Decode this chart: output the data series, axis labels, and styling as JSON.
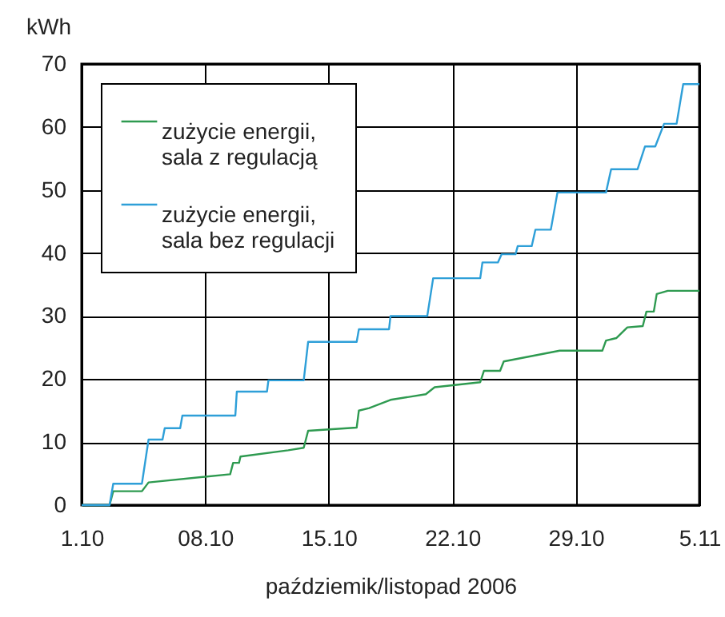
{
  "chart_data": {
    "type": "line",
    "xlabel": "paździemik/listopad 2006",
    "ylabel": "kWh",
    "xlim": [
      "2006-10-01",
      "2006-11-05"
    ],
    "xticks": [
      {
        "value": "2006-10-01",
        "label": "1.10"
      },
      {
        "value": "2006-10-08",
        "label": "08.10"
      },
      {
        "value": "2006-10-15",
        "label": "15.10"
      },
      {
        "value": "2006-10-22",
        "label": "22.10"
      },
      {
        "value": "2006-10-29",
        "label": "29.10"
      },
      {
        "value": "2006-11-05",
        "label": "5.11"
      }
    ],
    "ylim": [
      0,
      70
    ],
    "yticks": [
      0,
      10,
      20,
      30,
      40,
      50,
      60,
      70
    ],
    "grid": true,
    "legend": "top left",
    "line_style": "solid",
    "marker": "none",
    "series": [
      {
        "name": "zużycie energii, sala z regulacją",
        "color": "#2e9a50",
        "x": [
          "2006-10-01T00:00",
          "2006-10-02T14:00",
          "2006-10-02T19:00",
          "2006-10-04T10:00",
          "2006-10-04T19:00",
          "2006-10-09T10:00",
          "2006-10-09T14:00",
          "2006-10-09T22:00",
          "2006-10-10T00:00",
          "2006-10-12T17:00",
          "2006-10-13T14:00",
          "2006-10-13T20:00",
          "2006-10-16T14:00",
          "2006-10-16T17:00",
          "2006-10-17T07:00",
          "2006-10-18T12:00",
          "2006-10-20T12:00",
          "2006-10-21T00:00",
          "2006-10-23T14:00",
          "2006-10-23T19:00",
          "2006-10-24T17:00",
          "2006-10-24T22:00",
          "2006-10-28T02:00",
          "2006-10-30T12:00",
          "2006-10-30T17:00",
          "2006-10-31T07:00",
          "2006-10-31T22:00",
          "2006-11-01T19:00",
          "2006-11-02T00:00",
          "2006-11-02T10:00",
          "2006-11-02T14:00",
          "2006-11-03T05:00",
          "2006-11-05T00:00"
        ],
        "values": [
          0,
          0,
          2.2,
          2.2,
          3.6,
          4.9,
          6.7,
          6.7,
          7.7,
          8.7,
          9.1,
          11.8,
          12.3,
          15.0,
          15.4,
          16.7,
          17.6,
          18.7,
          19.5,
          21.3,
          21.3,
          22.8,
          24.5,
          24.5,
          26.1,
          26.5,
          28.2,
          28.4,
          30.7,
          30.7,
          33.5,
          34.0,
          34.0
        ]
      },
      {
        "name": "zużycie energii, sala bez regulacji",
        "color": "#2e9fd8",
        "x": [
          "2006-10-01T00:00",
          "2006-10-02T14:00",
          "2006-10-02T19:00",
          "2006-10-04T10:00",
          "2006-10-04T19:00",
          "2006-10-05T14:00",
          "2006-10-05T17:00",
          "2006-10-06T14:00",
          "2006-10-06T17:00",
          "2006-10-09T17:00",
          "2006-10-09T19:00",
          "2006-10-11T12:00",
          "2006-10-11T14:00",
          "2006-10-13T14:00",
          "2006-10-13T20:00",
          "2006-10-16T14:00",
          "2006-10-16T17:00",
          "2006-10-18T10:00",
          "2006-10-18T12:00",
          "2006-10-20T14:00",
          "2006-10-20T22:00",
          "2006-10-23T14:00",
          "2006-10-23T17:00",
          "2006-10-24T14:00",
          "2006-10-24T19:00",
          "2006-10-25T14:00",
          "2006-10-25T17:00",
          "2006-10-26T12:00",
          "2006-10-26T17:00",
          "2006-10-27T14:00",
          "2006-10-27T23:00",
          "2006-10-30T17:00",
          "2006-10-31T00:00",
          "2006-11-01T12:00",
          "2006-11-01T22:00",
          "2006-11-02T12:00",
          "2006-11-03T00:00",
          "2006-11-03T17:00",
          "2006-11-04T02:00",
          "2006-11-05T00:00"
        ],
        "values": [
          0,
          0,
          3.4,
          3.4,
          10.4,
          10.4,
          12.2,
          12.2,
          14.2,
          14.2,
          18.0,
          18.0,
          19.8,
          19.8,
          25.9,
          25.9,
          27.9,
          27.9,
          30.0,
          30.0,
          36.0,
          36.0,
          38.5,
          38.5,
          39.8,
          39.8,
          41.1,
          41.1,
          43.7,
          43.7,
          49.6,
          49.6,
          53.3,
          53.3,
          56.9,
          56.9,
          60.5,
          60.5,
          66.8,
          66.8
        ]
      }
    ]
  }
}
